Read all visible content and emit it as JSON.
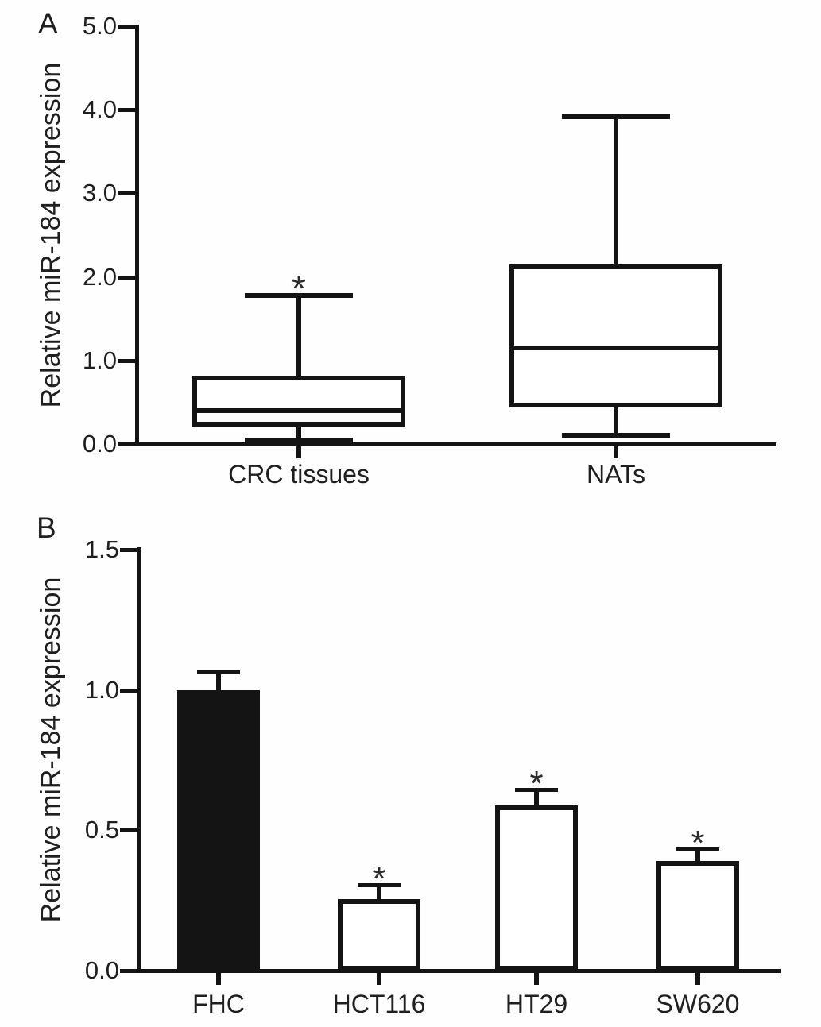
{
  "figure": {
    "background": "#fefefe",
    "line_color": "#141414",
    "panel_a": {
      "letter": "A",
      "ylabel": "Relative miR-184 expression",
      "ytick_labels": [
        "0.0",
        "1.0",
        "2.0",
        "3.0",
        "4.0",
        "5.0"
      ],
      "categories": [
        "CRC tissues",
        "NATs"
      ],
      "significance": [
        "*",
        ""
      ]
    },
    "panel_b": {
      "letter": "B",
      "ylabel": "Relative miR-184 expression",
      "ytick_labels": [
        "0.0",
        "0.5",
        "1.0",
        "1.5"
      ],
      "categories": [
        "FHC",
        "HCT116",
        "HT29",
        "SW620"
      ],
      "significance": [
        "",
        "*",
        "*",
        "*"
      ]
    }
  },
  "chart_data": [
    {
      "type": "box",
      "panel": "A",
      "title": "",
      "xlabel": "",
      "ylabel": "Relative miR-184 expression",
      "ylim": [
        0,
        5
      ],
      "yticks": [
        0,
        1,
        2,
        3,
        4,
        5
      ],
      "grid": false,
      "categories": [
        "CRC tissues",
        "NATs"
      ],
      "series": [
        {
          "name": "CRC tissues",
          "min": 0.05,
          "q1": 0.21,
          "median": 0.4,
          "q3": 0.82,
          "max": 1.78,
          "significance": "*"
        },
        {
          "name": "NATs",
          "min": 0.1,
          "q1": 0.44,
          "median": 1.15,
          "q3": 2.15,
          "max": 3.92,
          "significance": ""
        }
      ]
    },
    {
      "type": "bar",
      "panel": "B",
      "title": "",
      "xlabel": "",
      "ylabel": "Relative miR-184 expression",
      "ylim": [
        0,
        1.5
      ],
      "yticks": [
        0,
        0.5,
        1.0,
        1.5
      ],
      "grid": false,
      "categories": [
        "FHC",
        "HCT116",
        "HT29",
        "SW620"
      ],
      "values": [
        1.0,
        0.255,
        0.59,
        0.39
      ],
      "errors": [
        0.065,
        0.052,
        0.055,
        0.043
      ],
      "bar_fill": [
        "#141414",
        "#ffffff",
        "#ffffff",
        "#ffffff"
      ],
      "significance": [
        "",
        "*",
        "*",
        "*"
      ]
    }
  ]
}
